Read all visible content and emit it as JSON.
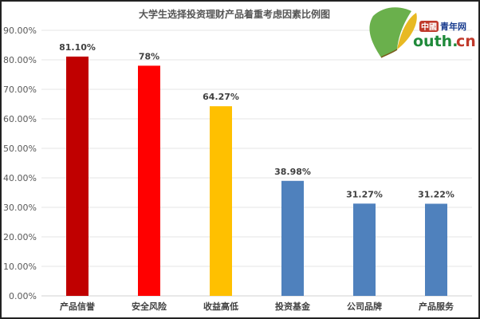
{
  "chart_data": {
    "type": "bar",
    "title": "大学生选择投资理财产品着重考虑因素比例图",
    "categories": [
      "产品信誉",
      "安全风险",
      "收益高低",
      "投资基金",
      "公司品牌",
      "产品服务"
    ],
    "values": [
      81.1,
      78,
      64.27,
      38.98,
      31.27,
      31.22
    ],
    "data_labels": [
      "81.10%",
      "78%",
      "64.27%",
      "38.98%",
      "31.27%",
      "31.22%"
    ],
    "bar_colors": [
      "#C00000",
      "#FF0000",
      "#FFC000",
      "#4F81BD",
      "#4F81BD",
      "#4F81BD"
    ],
    "ylim": [
      0,
      90
    ],
    "yticks": [
      "0.00%",
      "10.00%",
      "20.00%",
      "30.00%",
      "40.00%",
      "50.00%",
      "60.00%",
      "70.00%",
      "80.00%",
      "90.00%"
    ],
    "grid": true,
    "xlabel": "",
    "ylabel": ""
  },
  "logo": {
    "text_cn": "中國青年网",
    "text_en": "outh.cn"
  }
}
